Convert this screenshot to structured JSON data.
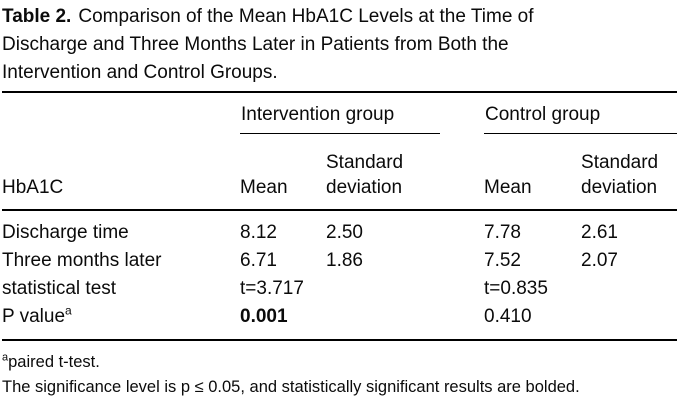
{
  "title": {
    "label": "Table 2.",
    "lines": [
      "Comparison of the Mean HbA1C Levels at the Time of",
      "Discharge and Three Months Later in Patients from Both the",
      "Intervention and Control Groups."
    ]
  },
  "table": {
    "groups": [
      "Intervention group",
      "Control group"
    ],
    "col_headers": {
      "row_label": "HbA1C",
      "mean": "Mean",
      "sd": "Standard\ndeviation"
    },
    "rows": [
      {
        "label": "Discharge time",
        "sup": "",
        "int_mean": "8.12",
        "int_sd": "2.50",
        "ctrl_mean": "7.78",
        "ctrl_sd": "2.61"
      },
      {
        "label": "Three months later",
        "sup": "",
        "int_mean": "6.71",
        "int_sd": "1.86",
        "ctrl_mean": "7.52",
        "ctrl_sd": "2.07"
      },
      {
        "label": "statistical test",
        "sup": "",
        "int_mean": "t=3.717",
        "int_sd": "",
        "ctrl_mean": "t=0.835",
        "ctrl_sd": ""
      },
      {
        "label": "P value",
        "sup": "a",
        "int_mean": "0.001",
        "int_sd": "",
        "ctrl_mean": "0.410",
        "ctrl_sd": ""
      }
    ]
  },
  "footnotes": {
    "note1_sup": "a",
    "note1": "paired t-test.",
    "note2": "The significance level is p ≤ 0.05, and statistically significant results are bolded."
  }
}
